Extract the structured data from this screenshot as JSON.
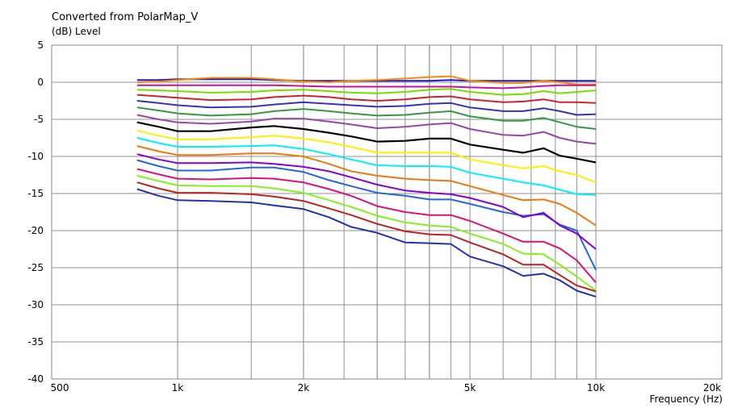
{
  "chart_data": {
    "type": "line",
    "title": "Converted from PolarMap_V",
    "ylabel": "(dB)  Level",
    "xlabel": "Frequency  (Hz)",
    "x_scale": "log",
    "xlim": [
      500,
      20000
    ],
    "ylim": [
      -40,
      5
    ],
    "grid": true,
    "x_tick_labels": [
      {
        "value": 500,
        "label": "500"
      },
      {
        "value": 1000,
        "label": "1k"
      },
      {
        "value": 2000,
        "label": "2k"
      },
      {
        "value": 5000,
        "label": "5k"
      },
      {
        "value": 10000,
        "label": "10k"
      },
      {
        "value": 20000,
        "label": "20k"
      }
    ],
    "y_ticks": [
      5,
      0,
      -5,
      -10,
      -15,
      -20,
      -25,
      -30,
      -35,
      -40
    ],
    "x": [
      800,
      900,
      1000,
      1200,
      1500,
      1700,
      2000,
      2300,
      2600,
      3000,
      3500,
      4000,
      4500,
      5000,
      6000,
      6700,
      7500,
      8200,
      9000,
      10000
    ],
    "series": [
      {
        "color": "#1a1acc",
        "values": [
          0.3,
          0.3,
          0.4,
          0.4,
          0.4,
          0.3,
          0.2,
          0.2,
          0.2,
          0.2,
          0.2,
          0.2,
          0.3,
          0.2,
          0.2,
          0.2,
          0.2,
          0.2,
          0.2,
          0.2
        ]
      },
      {
        "color": "#ff8800",
        "values": [
          0.0,
          0.1,
          0.3,
          0.6,
          0.6,
          0.4,
          0.1,
          0.0,
          0.2,
          0.3,
          0.5,
          0.7,
          0.8,
          0.2,
          -0.1,
          -0.1,
          0.2,
          0.0,
          -0.3,
          -0.3
        ]
      },
      {
        "color": "#cc1199",
        "values": [
          -0.4,
          -0.4,
          -0.4,
          -0.4,
          -0.4,
          -0.4,
          -0.5,
          -0.6,
          -0.6,
          -0.6,
          -0.6,
          -0.6,
          -0.6,
          -0.7,
          -0.8,
          -0.7,
          -0.5,
          -0.4,
          -0.4,
          -0.4
        ]
      },
      {
        "color": "#77dd00",
        "values": [
          -1.0,
          -1.1,
          -1.2,
          -1.4,
          -1.3,
          -1.1,
          -1.0,
          -1.2,
          -1.4,
          -1.5,
          -1.3,
          -1.0,
          -0.9,
          -1.3,
          -1.7,
          -1.6,
          -1.2,
          -1.5,
          -1.3,
          -1.1
        ]
      },
      {
        "color": "#cc2233",
        "values": [
          -1.7,
          -1.9,
          -2.1,
          -2.4,
          -2.3,
          -2.0,
          -1.8,
          -2.0,
          -2.3,
          -2.5,
          -2.3,
          -2.0,
          -1.9,
          -2.3,
          -2.7,
          -2.6,
          -2.3,
          -2.7,
          -2.7,
          -2.8
        ]
      },
      {
        "color": "#3333bb",
        "values": [
          -2.5,
          -2.8,
          -3.1,
          -3.4,
          -3.3,
          -3.0,
          -2.7,
          -2.9,
          -3.1,
          -3.3,
          -3.2,
          -2.9,
          -2.8,
          -3.4,
          -3.9,
          -3.9,
          -3.5,
          -3.9,
          -4.4,
          -4.3
        ]
      },
      {
        "color": "#339944",
        "values": [
          -3.4,
          -3.8,
          -4.2,
          -4.5,
          -4.3,
          -3.9,
          -3.6,
          -3.9,
          -4.2,
          -4.5,
          -4.4,
          -4.1,
          -3.9,
          -4.6,
          -5.2,
          -5.2,
          -4.8,
          -5.4,
          -6.0,
          -6.3
        ]
      },
      {
        "color": "#9944aa",
        "values": [
          -4.4,
          -5.0,
          -5.4,
          -5.6,
          -5.3,
          -4.9,
          -4.9,
          -5.3,
          -5.7,
          -6.2,
          -6.0,
          -5.7,
          -5.5,
          -6.3,
          -7.1,
          -7.2,
          -6.7,
          -7.5,
          -8.0,
          -8.3
        ]
      },
      {
        "color": "#000000",
        "values": [
          -5.4,
          -6.0,
          -6.6,
          -6.6,
          -6.1,
          -5.9,
          -6.3,
          -6.8,
          -7.3,
          -8.0,
          -7.9,
          -7.6,
          -7.6,
          -8.4,
          -9.1,
          -9.5,
          -8.9,
          -9.9,
          -10.3,
          -10.8
        ]
      },
      {
        "color": "#ffee00",
        "values": [
          -6.5,
          -7.2,
          -7.7,
          -7.7,
          -7.4,
          -7.2,
          -7.6,
          -8.1,
          -8.7,
          -9.5,
          -9.5,
          -9.5,
          -9.5,
          -10.4,
          -11.2,
          -11.6,
          -11.3,
          -12.0,
          -12.5,
          -13.5
        ]
      },
      {
        "color": "#00eeff",
        "values": [
          -7.5,
          -8.2,
          -8.7,
          -8.7,
          -8.6,
          -8.5,
          -9.0,
          -9.7,
          -10.4,
          -11.2,
          -11.3,
          -11.3,
          -11.4,
          -12.2,
          -13.0,
          -13.5,
          -13.9,
          -14.5,
          -15.1,
          -15.2
        ]
      },
      {
        "color": "#ee7711",
        "values": [
          -8.6,
          -9.3,
          -9.8,
          -9.8,
          -9.6,
          -9.6,
          -10.0,
          -11.0,
          -12.0,
          -12.6,
          -13.0,
          -13.2,
          -13.3,
          -14.0,
          -15.2,
          -15.9,
          -15.8,
          -16.4,
          -17.6,
          -19.3
        ]
      },
      {
        "color": "#2266dd",
        "values": [
          -10.5,
          -11.3,
          -11.9,
          -11.9,
          -11.5,
          -11.5,
          -12.1,
          -13.2,
          -14.0,
          -14.9,
          -15.3,
          -15.8,
          -15.8,
          -16.4,
          -17.5,
          -18.0,
          -17.8,
          -19.2,
          -20.0,
          -25.3
        ]
      },
      {
        "color": "#8800cc",
        "values": [
          -9.7,
          -10.4,
          -10.9,
          -10.9,
          -10.8,
          -11.0,
          -11.4,
          -12.0,
          -12.8,
          -13.8,
          -14.6,
          -14.9,
          -15.1,
          -15.6,
          -16.8,
          -18.2,
          -17.6,
          -19.3,
          -20.4,
          -22.5
        ]
      },
      {
        "color": "#dd1177",
        "values": [
          -11.7,
          -12.4,
          -13.0,
          -13.1,
          -12.9,
          -13.0,
          -13.5,
          -14.4,
          -15.3,
          -16.7,
          -17.5,
          -17.9,
          -17.9,
          -18.7,
          -20.4,
          -21.5,
          -21.5,
          -22.4,
          -24.0,
          -27.0
        ]
      },
      {
        "color": "#88ee22",
        "values": [
          -12.6,
          -13.3,
          -13.9,
          -14.0,
          -14.0,
          -14.3,
          -14.9,
          -15.9,
          -16.8,
          -18.0,
          -18.9,
          -19.3,
          -19.5,
          -20.4,
          -21.8,
          -23.1,
          -23.2,
          -24.6,
          -26.2,
          -28.1
        ]
      },
      {
        "color": "#bb2222",
        "values": [
          -13.5,
          -14.3,
          -14.9,
          -14.9,
          -15.1,
          -15.4,
          -16.0,
          -17.0,
          -17.9,
          -19.1,
          -20.1,
          -20.5,
          -20.6,
          -21.6,
          -23.2,
          -24.6,
          -24.6,
          -26.0,
          -27.4,
          -28.2
        ]
      },
      {
        "color": "#2233aa",
        "values": [
          -14.4,
          -15.3,
          -15.9,
          -16.0,
          -16.2,
          -16.6,
          -17.1,
          -18.2,
          -19.5,
          -20.3,
          -21.6,
          -21.7,
          -21.8,
          -23.5,
          -24.8,
          -26.1,
          -25.8,
          -26.7,
          -28.1,
          -28.9
        ]
      }
    ]
  }
}
